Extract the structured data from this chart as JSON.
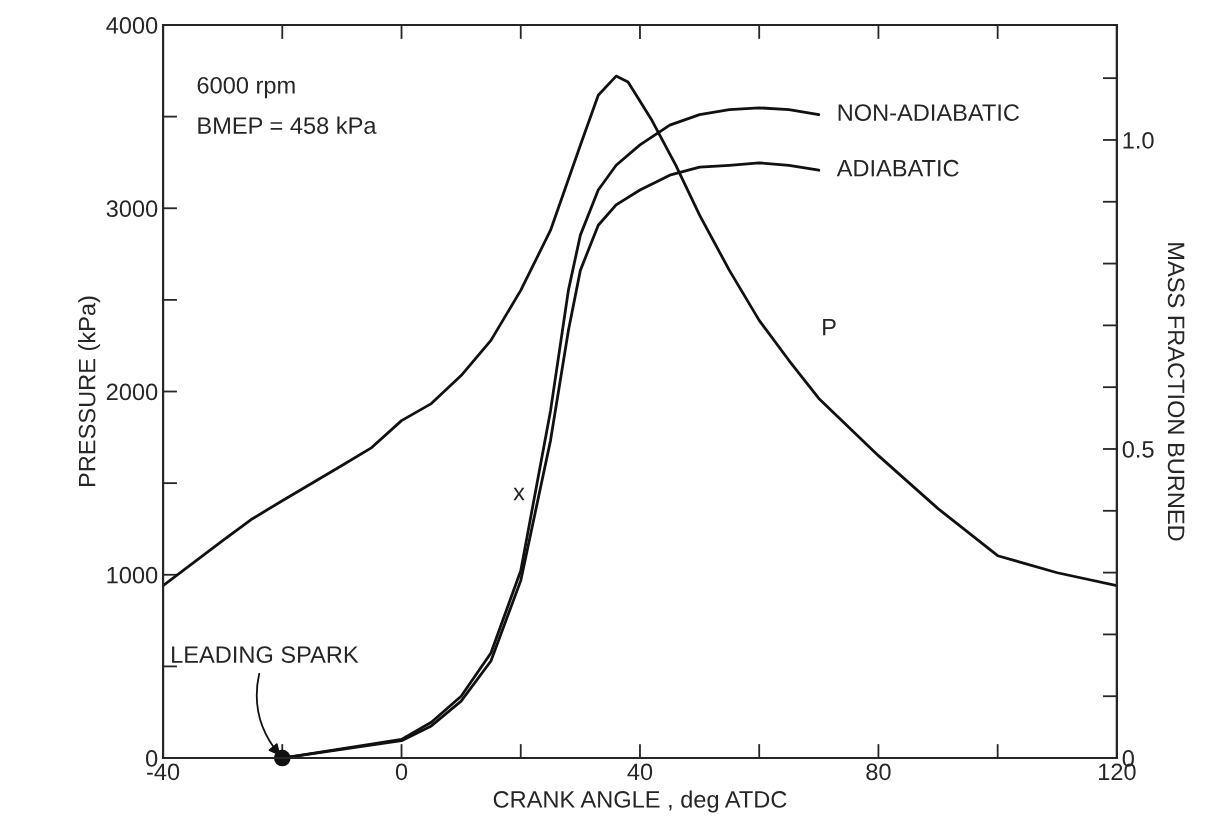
{
  "chart_data": {
    "type": "line",
    "xlabel": "CRANK ANGLE , deg ATDC",
    "ylabel": "PRESSURE (kPa)",
    "y2label": "MASS FRACTION BURNED",
    "xlim": [
      -40,
      120
    ],
    "xticks": [
      -40,
      {
        "value": -20,
        "label": null
      },
      0,
      {
        "value": 20,
        "label": null
      },
      40,
      {
        "value": 60,
        "label": null
      },
      80,
      {
        "value": 100,
        "label": null
      },
      120
    ],
    "ylim": [
      0,
      4000
    ],
    "yticks": [
      0,
      {
        "value": 500,
        "label": null
      },
      1000,
      {
        "value": 1500,
        "label": null
      },
      2000,
      {
        "value": 2500,
        "label": null
      },
      3000,
      {
        "value": 3500,
        "label": null
      },
      4000
    ],
    "y2lim": [
      0,
      1.186
    ],
    "y2ticks": [
      0,
      {
        "value": 0.1,
        "label": null
      },
      {
        "value": 0.2,
        "label": null
      },
      {
        "value": 0.3,
        "label": null
      },
      {
        "value": 0.4,
        "label": null
      },
      0.5,
      {
        "value": 0.6,
        "label": null
      },
      {
        "value": 0.7,
        "label": null
      },
      {
        "value": 0.8,
        "label": null
      },
      {
        "value": 0.9,
        "label": null
      },
      {
        "value": 1,
        "label": "1.0"
      },
      {
        "value": 1.1,
        "label": null
      }
    ],
    "grid": false,
    "legend": false,
    "marker": "none",
    "line_style": "solid",
    "series": [
      {
        "color": "#111111",
        "x": [
          -40,
          -30,
          -25,
          -20,
          -10,
          -5,
          0,
          5,
          10,
          15,
          20,
          25,
          30,
          33,
          36,
          38,
          42,
          46,
          50,
          55,
          60,
          65,
          70,
          80,
          90,
          100,
          110,
          120
        ],
        "values": [
          940,
          1186,
          1306,
          1404,
          1596,
          1694,
          1841,
          1934,
          2087,
          2279,
          2552,
          2880,
          3344,
          3617,
          3721,
          3689,
          3480,
          3235,
          2962,
          2661,
          2388,
          2169,
          1962,
          1650,
          1361,
          1104,
          1011,
          940
        ]
      },
      {
        "name": "NON-ADIABATIC",
        "color": "#111111",
        "axis": "y2",
        "x": [
          -20,
          0,
          5,
          10,
          15,
          20,
          25,
          28,
          30,
          33,
          36,
          40,
          45,
          50,
          55,
          60,
          65,
          70
        ],
        "values": [
          0,
          0.03,
          0.058,
          0.1,
          0.17,
          0.303,
          0.562,
          0.757,
          0.846,
          0.919,
          0.959,
          0.992,
          1.024,
          1.041,
          1.049,
          1.052,
          1.049,
          1.041
        ]
      },
      {
        "name": "ADIABATIC",
        "color": "#111111",
        "axis": "y2",
        "x": [
          -20,
          0,
          5,
          10,
          15,
          20,
          25,
          28,
          30,
          33,
          36,
          40,
          45,
          50,
          55,
          60,
          65,
          70
        ],
        "values": [
          0,
          0.028,
          0.052,
          0.092,
          0.157,
          0.287,
          0.514,
          0.692,
          0.789,
          0.862,
          0.895,
          0.919,
          0.943,
          0.956,
          0.959,
          0.963,
          0.959,
          0.951
        ]
      },
      {
        "type": "scatter",
        "marker": "circle",
        "color": "#111111",
        "x": [
          -20
        ],
        "values": [
          0
        ]
      }
    ],
    "annotations": [
      "6000 rpm",
      "BMEP = 458 kPa",
      {
        "text": "LEADING SPARK",
        "x": -20,
        "y": 0
      },
      "x",
      "P"
    ]
  }
}
